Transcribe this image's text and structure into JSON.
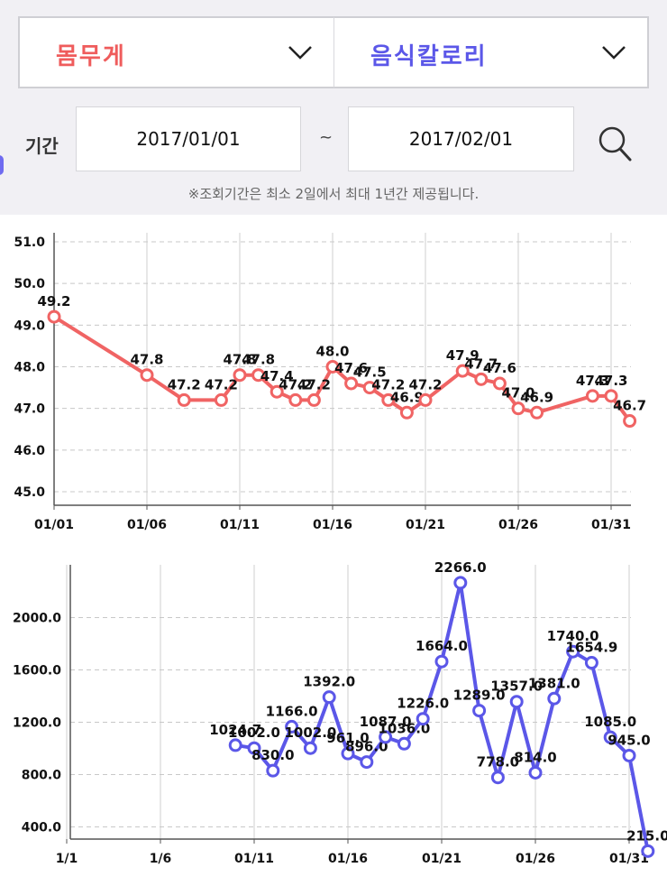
{
  "filters": {
    "left_select": {
      "label": "몸무게",
      "color": "#ef5c5c"
    },
    "right_select": {
      "label": "음식칼로리",
      "color": "#5b57e8"
    },
    "period_label": "기간",
    "date_from": "2017/01/01",
    "separator": "~",
    "date_to": "2017/02/01",
    "notice": "※조회기간은 최소 2일에서 최대 1년간 제공됩니다."
  },
  "chart_data": [
    {
      "type": "line",
      "color": "#f06464",
      "x_ticks": [
        "01/01",
        "01/06",
        "01/11",
        "01/16",
        "01/21",
        "01/26",
        "01/31"
      ],
      "y_ticks": [
        "45.0",
        "46.0",
        "47.0",
        "48.0",
        "49.0",
        "50.0",
        "51.0"
      ],
      "ylim": [
        45.0,
        51.0
      ],
      "grid": true,
      "series": [
        {
          "x": [
            1,
            6,
            8,
            10,
            11,
            12,
            13,
            14,
            15,
            16,
            17,
            18,
            19,
            20,
            21,
            23,
            24,
            25,
            26,
            27,
            30,
            31,
            32
          ],
          "values": [
            49.2,
            47.8,
            47.2,
            47.2,
            47.8,
            47.8,
            47.4,
            47.2,
            47.2,
            48.0,
            47.6,
            47.5,
            47.2,
            46.9,
            47.2,
            47.9,
            47.7,
            47.6,
            47.0,
            46.9,
            47.3,
            47.3,
            46.7
          ],
          "labels": [
            "49.2",
            "47.8",
            "47.2",
            "47.2",
            "47.8",
            "47.8",
            "47.4",
            "47.2",
            "47.2",
            "48.0",
            "47.6",
            "47.5",
            "47.2",
            "46.9",
            "47.2",
            "47.9",
            "47.7",
            "47.6",
            "47.0",
            "46.9",
            "47.3",
            "47.3",
            "46.7"
          ]
        }
      ]
    },
    {
      "type": "line",
      "color": "#5b57e8",
      "x_ticks": [
        "1/1",
        "1/6",
        "01/11",
        "01/16",
        "01/21",
        "01/26",
        "01/31"
      ],
      "y_ticks": [
        "400.0",
        "800.0",
        "1200.0",
        "1600.0",
        "2000.0"
      ],
      "ylim": [
        100,
        2300
      ],
      "grid": true,
      "series": [
        {
          "x": [
            10,
            11,
            12,
            13,
            14,
            15,
            16,
            17,
            18,
            19,
            20,
            21,
            22,
            23,
            24,
            25,
            26,
            27,
            28,
            29,
            30,
            31,
            32
          ],
          "values": [
            1024.7,
            1002.0,
            830.0,
            1166.0,
            1002.0,
            1392.0,
            961.0,
            896.0,
            1087.0,
            1036.0,
            1226.0,
            1664.0,
            2266.0,
            1289.0,
            778.0,
            1357.0,
            814.0,
            1381.0,
            1740.0,
            1654.9,
            1085.0,
            945.0,
            215.0
          ],
          "labels": [
            "1024.7",
            "1002.0",
            "830.0",
            "1166.0",
            "1002.0",
            "1392.0",
            "961.0",
            "896.0",
            "1087.0",
            "1036.0",
            "1226.0",
            "1664.0",
            "2266.0",
            "1289.0",
            "778.0",
            "1357.0",
            "814.0",
            "1381.0",
            "1740.0",
            "1654.9",
            "1085.0",
            "945.0",
            "215.0"
          ]
        }
      ]
    }
  ]
}
